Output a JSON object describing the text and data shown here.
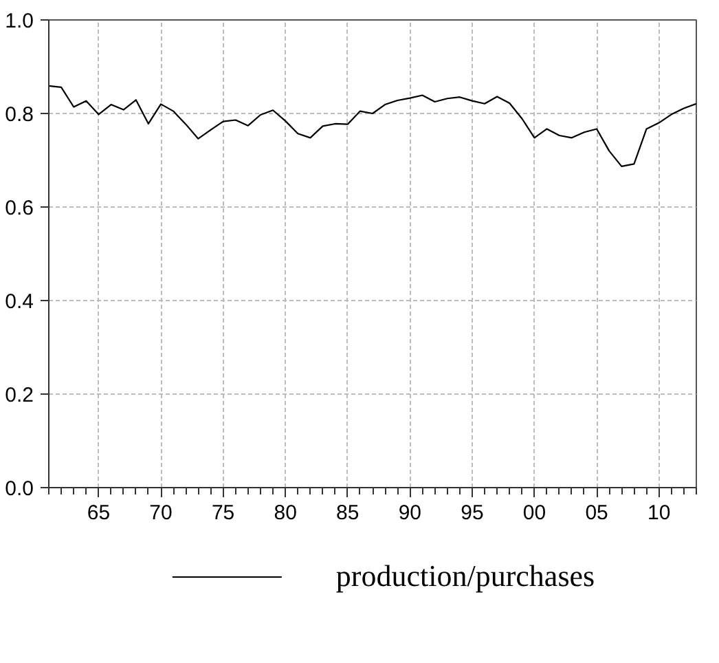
{
  "chart_data": {
    "type": "line",
    "x": [
      1961,
      1962,
      1963,
      1964,
      1965,
      1966,
      1967,
      1968,
      1969,
      1970,
      1971,
      1972,
      1973,
      1974,
      1975,
      1976,
      1977,
      1978,
      1979,
      1980,
      1981,
      1982,
      1983,
      1984,
      1985,
      1986,
      1987,
      1988,
      1989,
      1990,
      1991,
      1992,
      1993,
      1994,
      1995,
      1996,
      1997,
      1998,
      1999,
      2000,
      2001,
      2002,
      2003,
      2004,
      2005,
      2006,
      2007,
      2008,
      2009,
      2010,
      2011,
      2012,
      2013
    ],
    "series": [
      {
        "name": "production/purchases",
        "color": "#000000",
        "values": [
          0.859,
          0.856,
          0.814,
          0.827,
          0.798,
          0.819,
          0.808,
          0.829,
          0.778,
          0.82,
          0.805,
          0.777,
          0.746,
          0.765,
          0.783,
          0.786,
          0.774,
          0.797,
          0.807,
          0.784,
          0.757,
          0.748,
          0.773,
          0.778,
          0.777,
          0.805,
          0.8,
          0.819,
          0.828,
          0.833,
          0.839,
          0.825,
          0.832,
          0.835,
          0.827,
          0.821,
          0.836,
          0.822,
          0.789,
          0.748,
          0.767,
          0.753,
          0.748,
          0.76,
          0.767,
          0.72,
          0.687,
          0.692,
          0.767,
          0.78,
          0.798,
          0.811,
          0.821
        ]
      }
    ],
    "xlim": [
      1961,
      2013
    ],
    "xticks": [
      {
        "value": 1965,
        "label": "65"
      },
      {
        "value": 1970,
        "label": "70"
      },
      {
        "value": 1975,
        "label": "75"
      },
      {
        "value": 1980,
        "label": "80"
      },
      {
        "value": 1985,
        "label": "85"
      },
      {
        "value": 1990,
        "label": "90"
      },
      {
        "value": 1995,
        "label": "95"
      },
      {
        "value": 2000,
        "label": "00"
      },
      {
        "value": 2005,
        "label": "05"
      },
      {
        "value": 2010,
        "label": "10"
      }
    ],
    "ylim": [
      0,
      1
    ],
    "yticks": [
      {
        "value": 0,
        "label": "0.0"
      },
      {
        "value": 0.2,
        "label": "0.2"
      },
      {
        "value": 0.4,
        "label": "0.4"
      },
      {
        "value": 0.6,
        "label": "0.6"
      },
      {
        "value": 0.8,
        "label": "0.8"
      },
      {
        "value": 1,
        "label": "1.0"
      }
    ],
    "grid": true,
    "legend": "bottom",
    "line_style": "solid"
  }
}
